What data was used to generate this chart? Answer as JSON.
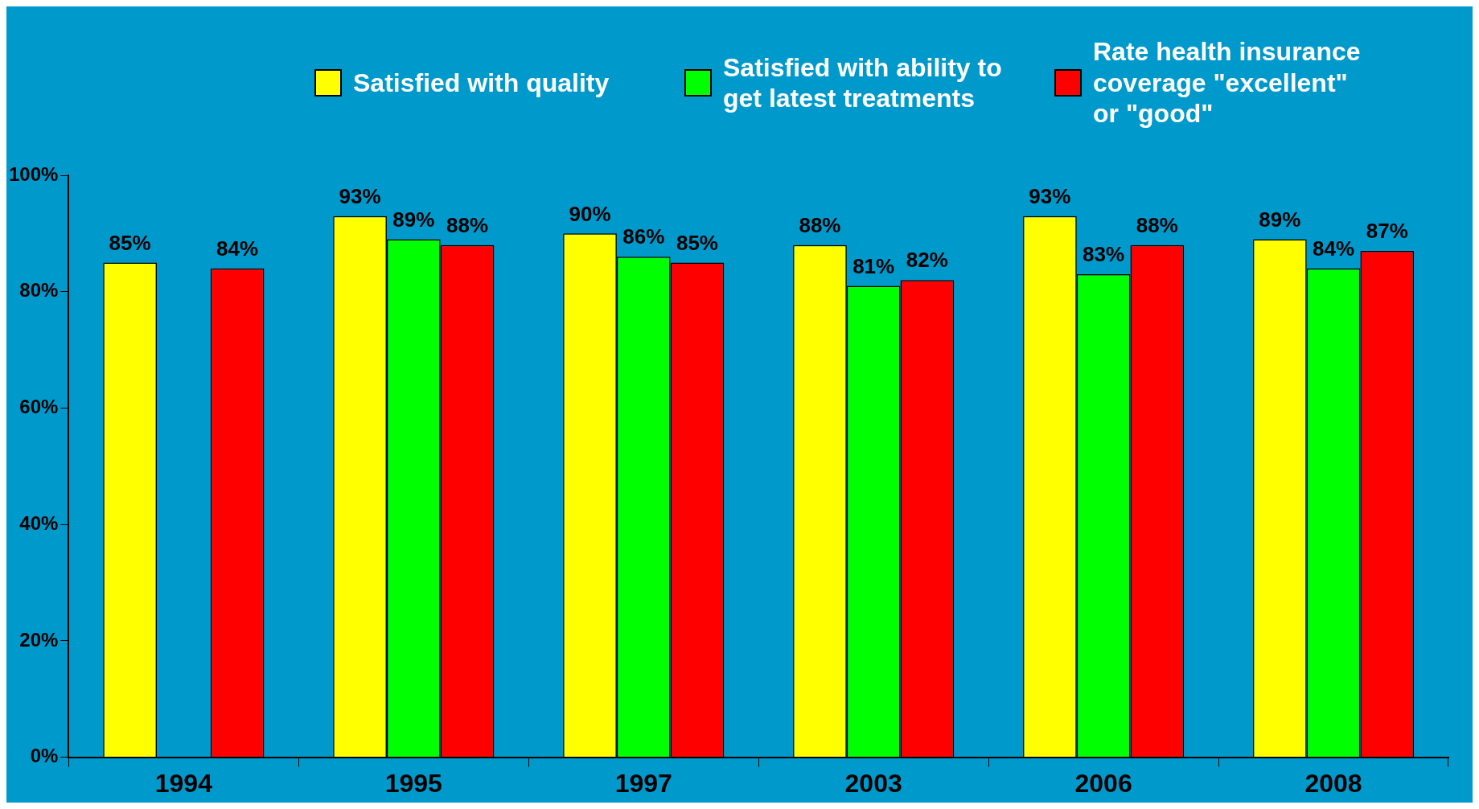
{
  "chart_data": {
    "type": "bar",
    "categories": [
      "1994",
      "1995",
      "1997",
      "2003",
      "2006",
      "2008"
    ],
    "series": [
      {
        "name": "Satisfied with quality",
        "color": "#ffff00",
        "values": [
          85,
          93,
          90,
          88,
          93,
          89
        ],
        "value_labels": [
          "85%",
          "93%",
          "90%",
          "88%",
          "93%",
          "89%"
        ]
      },
      {
        "name": "Satisfied with ability to get latest treatments",
        "color": "#00ff00",
        "values": [
          null,
          89,
          86,
          81,
          83,
          84
        ],
        "value_labels": [
          null,
          "89%",
          "86%",
          "81%",
          "83%",
          "84%"
        ]
      },
      {
        "name": "Rate health insurance coverage \"excellent\" or \"good\"",
        "color": "#ff0000",
        "values": [
          84,
          88,
          85,
          82,
          88,
          87
        ],
        "value_labels": [
          "84%",
          "88%",
          "85%",
          "82%",
          "88%",
          "87%"
        ]
      }
    ],
    "ylim": [
      0,
      100
    ],
    "yticks": [
      {
        "value": 0,
        "label": "0%"
      },
      {
        "value": 20,
        "label": "20%"
      },
      {
        "value": 40,
        "label": "40%"
      },
      {
        "value": 60,
        "label": "60%"
      },
      {
        "value": 80,
        "label": "80%"
      },
      {
        "value": 100,
        "label": "100%"
      }
    ],
    "grid": false,
    "legend": "top"
  }
}
